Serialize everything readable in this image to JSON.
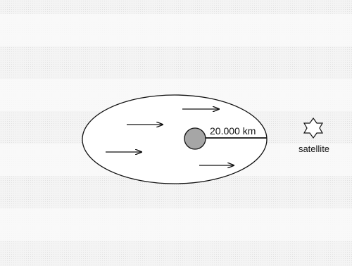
{
  "diagram": {
    "radius_label": "20.000 km",
    "satellite_label": "satellite",
    "icons": {
      "planet": "planet-circle-icon",
      "satellite": "six-pointed-star-icon",
      "flow": "right-arrow-icon"
    },
    "colors": {
      "background": "#f4f4f4",
      "planet_fill": "#a6a6a6",
      "stroke": "#111111"
    }
  }
}
